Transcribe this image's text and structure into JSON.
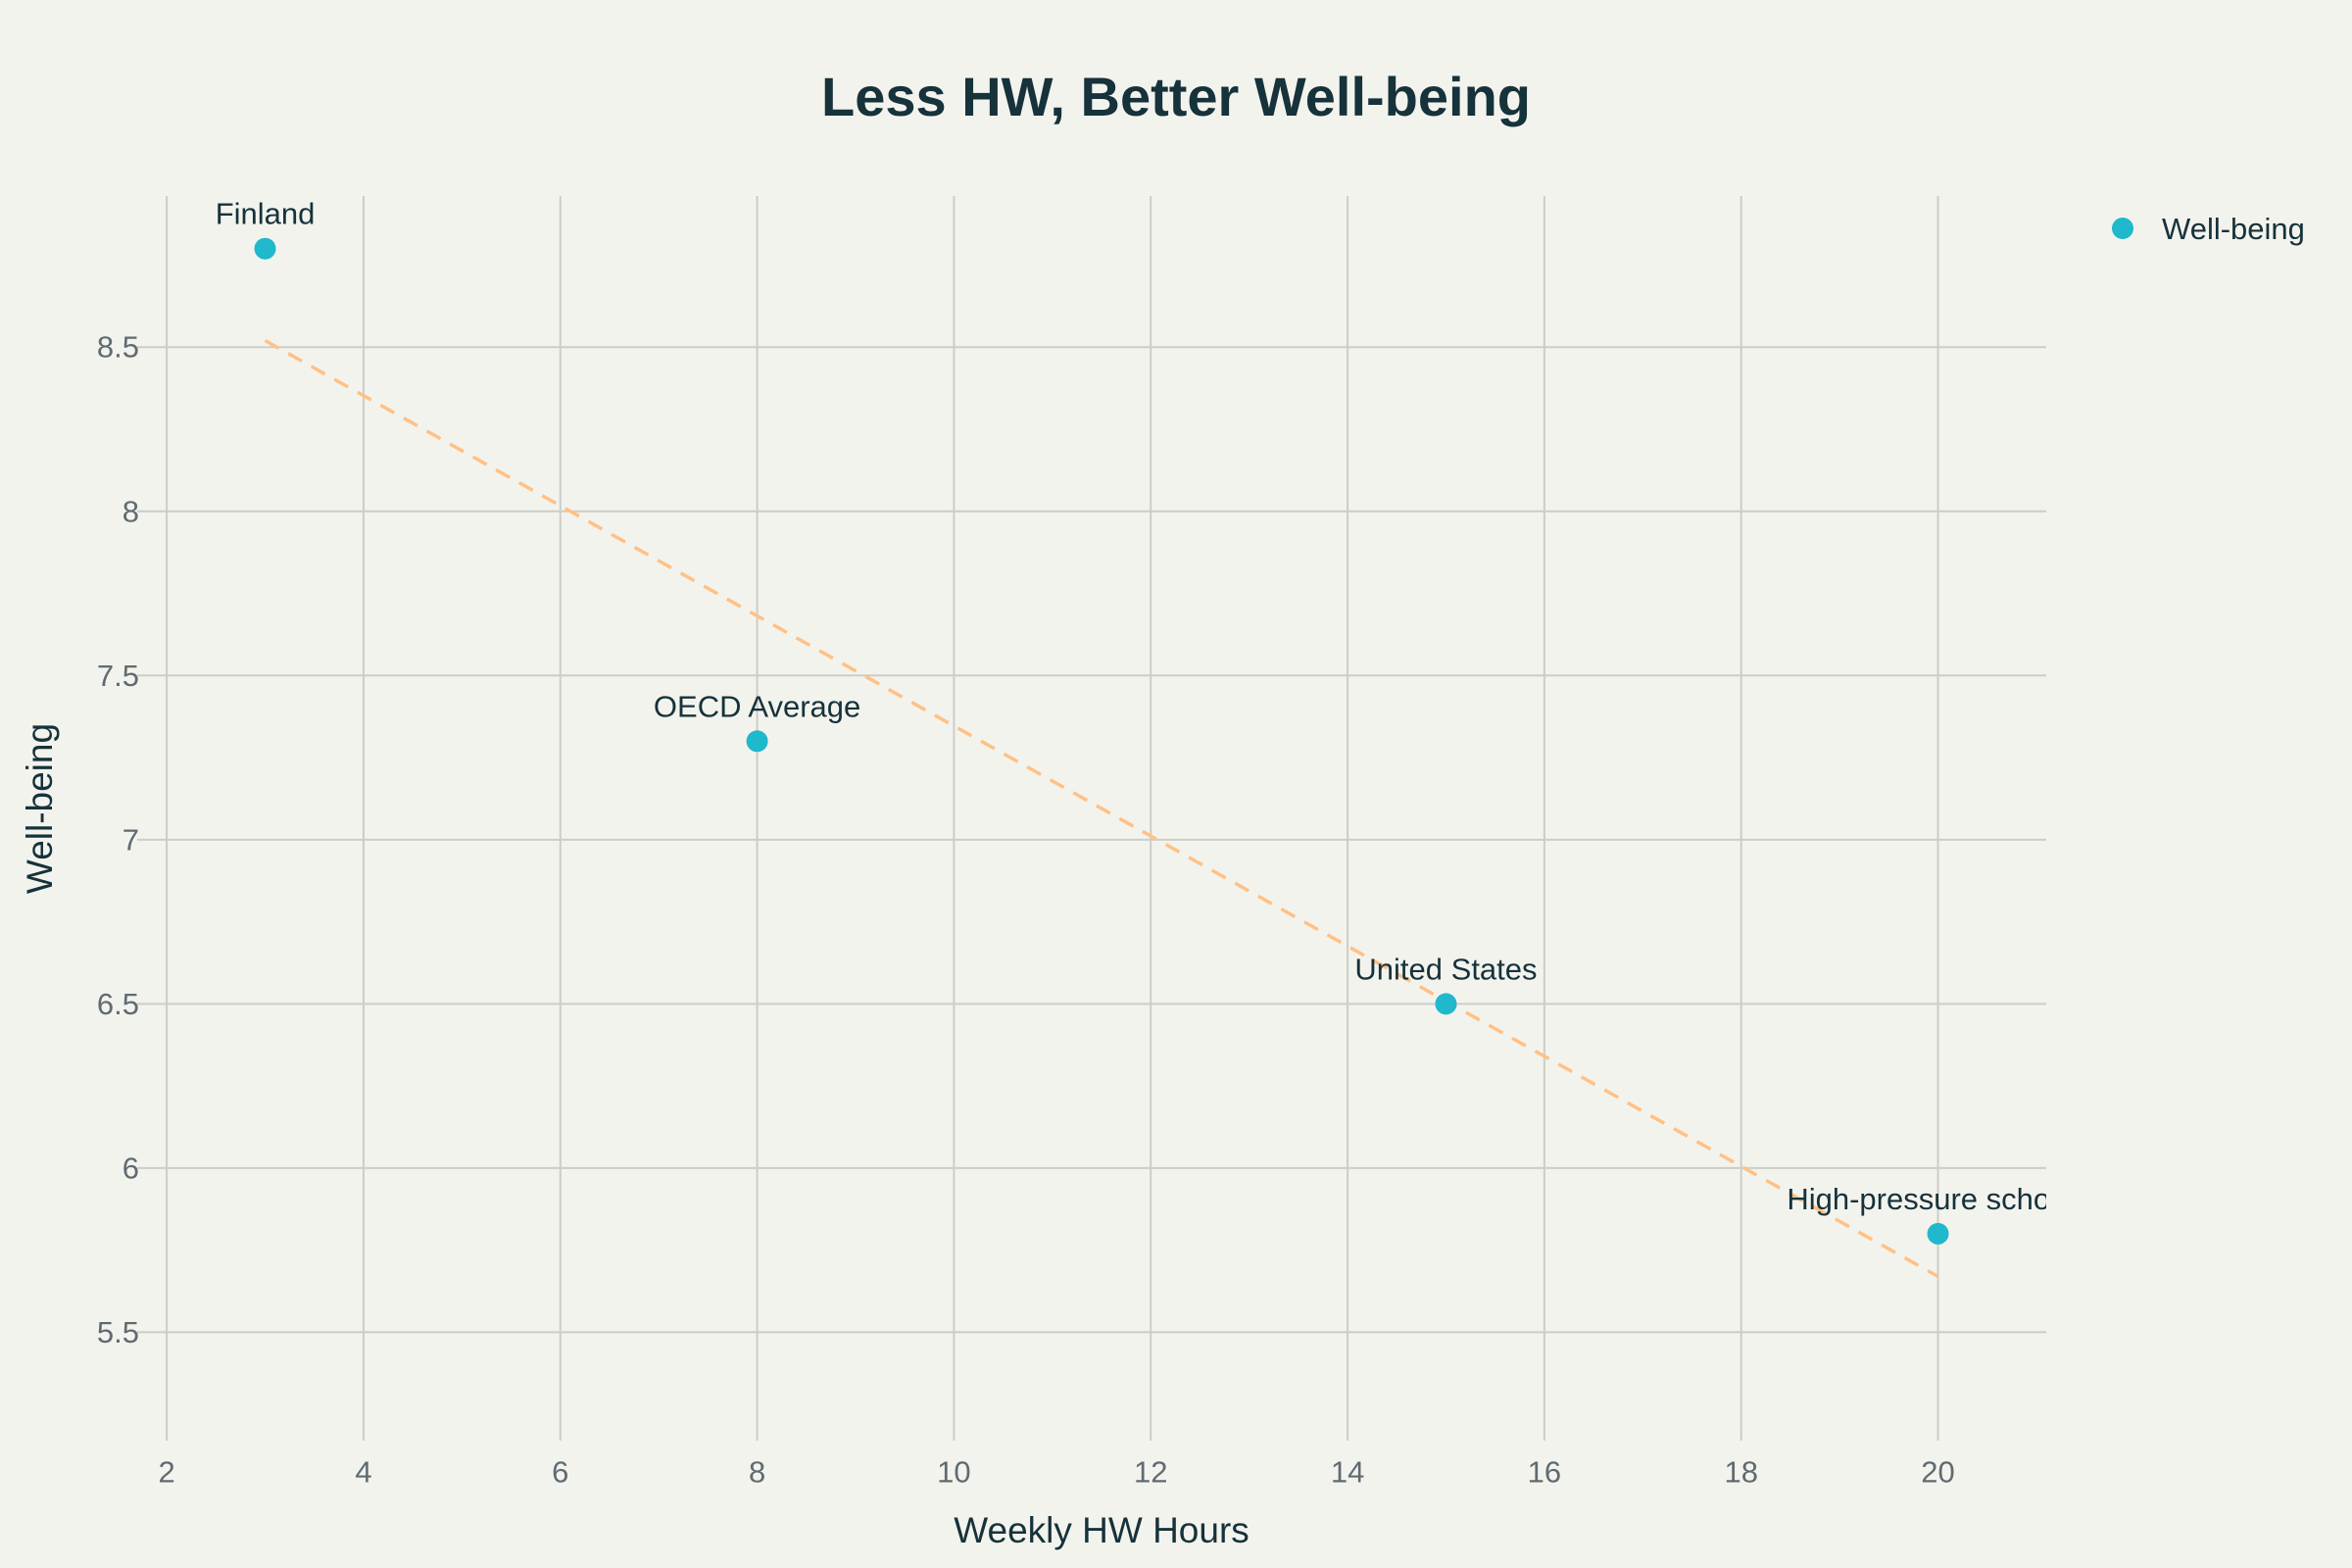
{
  "chart_data": {
    "type": "scatter",
    "title": "Less HW, Better Well-being",
    "xlabel": "Weekly HW Hours",
    "ylabel": "Well-being",
    "xlim": [
      1.7,
      21.1
    ],
    "ylim": [
      5.17,
      9.02
    ],
    "x_ticks": [
      2,
      4,
      6,
      8,
      10,
      12,
      14,
      16,
      18,
      20
    ],
    "y_ticks": [
      5.5,
      6,
      6.5,
      7,
      7.5,
      8,
      8.5
    ],
    "x_tick_labels": [
      "2",
      "4",
      "6",
      "8",
      "10",
      "12",
      "14",
      "16",
      "18",
      "20"
    ],
    "y_tick_labels": [
      "5.5",
      "6",
      "6.5",
      "7",
      "7.5",
      "8",
      "8.5"
    ],
    "grid": true,
    "legend_position": "top-right",
    "series": [
      {
        "name": "Well-being",
        "color": "#1fb8cd",
        "points": [
          {
            "label": "Finland",
            "x": 3,
            "y": 8.8
          },
          {
            "label": "OECD Average",
            "x": 8,
            "y": 7.3
          },
          {
            "label": "United States",
            "x": 15,
            "y": 6.5
          },
          {
            "label": "High-pressure schools",
            "x": 20,
            "y": 5.8
          }
        ]
      }
    ],
    "trendline": {
      "style": "dashed",
      "color": "#ffc185",
      "x": [
        3,
        20
      ],
      "y": [
        8.52,
        5.67
      ]
    }
  }
}
